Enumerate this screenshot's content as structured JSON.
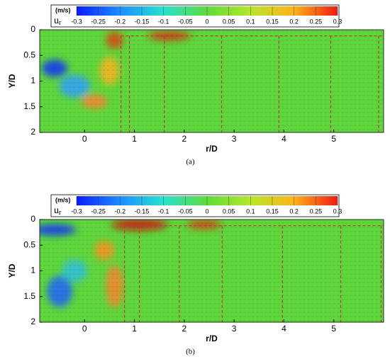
{
  "chart_data": [
    {
      "type": "contour",
      "colorbar_unit": "(m/s)",
      "colorbar_label": "u",
      "colorbar_label_sub": "r",
      "clim": [
        -0.3,
        0.3
      ],
      "cticks": [
        -0.3,
        -0.25,
        -0.2,
        -0.15,
        -0.1,
        -0.05,
        0,
        0.05,
        0.1,
        0.15,
        0.2,
        0.25,
        0.3
      ],
      "xlabel": "r/D",
      "ylabel": "Y/D",
      "xlim": [
        -0.9,
        6.0
      ],
      "xticks": [
        0,
        1,
        2,
        3,
        4,
        5
      ],
      "ylim": [
        0,
        2
      ],
      "yticks": [
        0,
        0.5,
        1,
        1.5,
        2
      ],
      "y_inverted": true,
      "dashed_r": [
        0.73,
        0.9,
        1.6,
        2.75,
        3.9,
        4.94,
        5.9
      ],
      "dashed_y": 0.12,
      "line_color": "#c0392b",
      "caption": "(a)"
    },
    {
      "type": "contour",
      "colorbar_unit": "(m/s)",
      "colorbar_label": "u",
      "colorbar_label_sub": "r",
      "clim": [
        -0.3,
        0.3
      ],
      "cticks": [
        -0.3,
        -0.25,
        -0.2,
        -0.15,
        -0.1,
        -0.05,
        0,
        0.05,
        0.1,
        0.15,
        0.2,
        0.25,
        0.3
      ],
      "xlabel": "r/D",
      "ylabel": "Y/D",
      "xlim": [
        -0.9,
        6.0
      ],
      "xticks": [
        0,
        1,
        2,
        3,
        4,
        5
      ],
      "ylim": [
        0,
        2
      ],
      "yticks": [
        0,
        0.5,
        1,
        1.5,
        2
      ],
      "y_inverted": true,
      "dashed_r": [
        0.8,
        1.1,
        1.9,
        2.76,
        3.97,
        5.14,
        5.95
      ],
      "dashed_y": 0.12,
      "line_color": "#c0392b",
      "caption": "(b)"
    }
  ]
}
